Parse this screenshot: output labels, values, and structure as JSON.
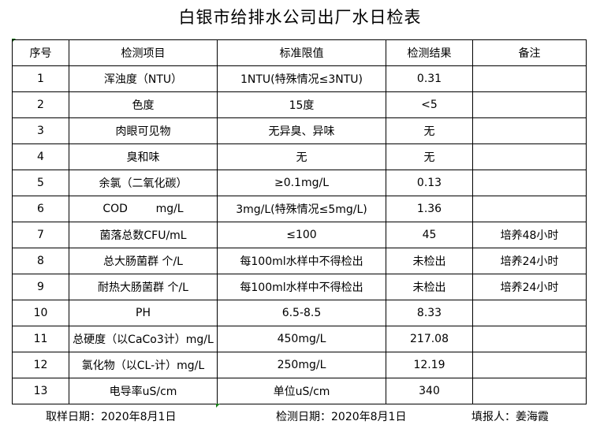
{
  "title": "白银市给排水公司出厂水日检表",
  "headers": [
    "序号",
    "检测项目",
    "标准限值",
    "检测结果",
    "备注"
  ],
  "rows": [
    [
      "1",
      "浑浊度（NTU）",
      "1NTU(特殊情况≤3NTU)",
      "0.31",
      ""
    ],
    [
      "2",
      "色度",
      "15度",
      "<5",
      ""
    ],
    [
      "3",
      "肉眼可见物",
      "无异臭、异味",
      "无",
      ""
    ],
    [
      "4",
      "臭和味",
      "无",
      "无",
      ""
    ],
    [
      "5",
      "余氯（二氧化碳）",
      "≥0.1mg/L",
      "0.13",
      ""
    ],
    [
      "6",
      "COD        mg/L",
      "3mg/L(特殊情况≤5mg/L)",
      "1.36",
      ""
    ],
    [
      "7",
      "菌落总数CFU/mL",
      "≤100",
      "45",
      "培养48小时"
    ],
    [
      "8",
      "总大肠菌群 个/L",
      "每100ml水样中不得检出",
      "未检出",
      "培养24小时"
    ],
    [
      "9",
      "耐热大肠菌群 个/L",
      "每100ml水样中不得检出",
      "未检出",
      "培养24小时"
    ],
    [
      "10",
      "PH",
      "6.5-8.5",
      "8.33",
      ""
    ],
    [
      "11",
      "总硬度（以CaCo3计）mg/L",
      "450mg/L",
      "217.08",
      ""
    ],
    [
      "12",
      "氯化物（以CL-计）mg/L",
      "250mg/L",
      "12.19",
      ""
    ],
    [
      "13",
      "电导率uS/cm",
      "单位uS/cm",
      "340",
      ""
    ]
  ],
  "footer": {
    "sample_date": "取样日期：2020年8月1日",
    "test_date": "检测日期：2020年8月1日",
    "reporter": "填报人：姜海霞"
  }
}
